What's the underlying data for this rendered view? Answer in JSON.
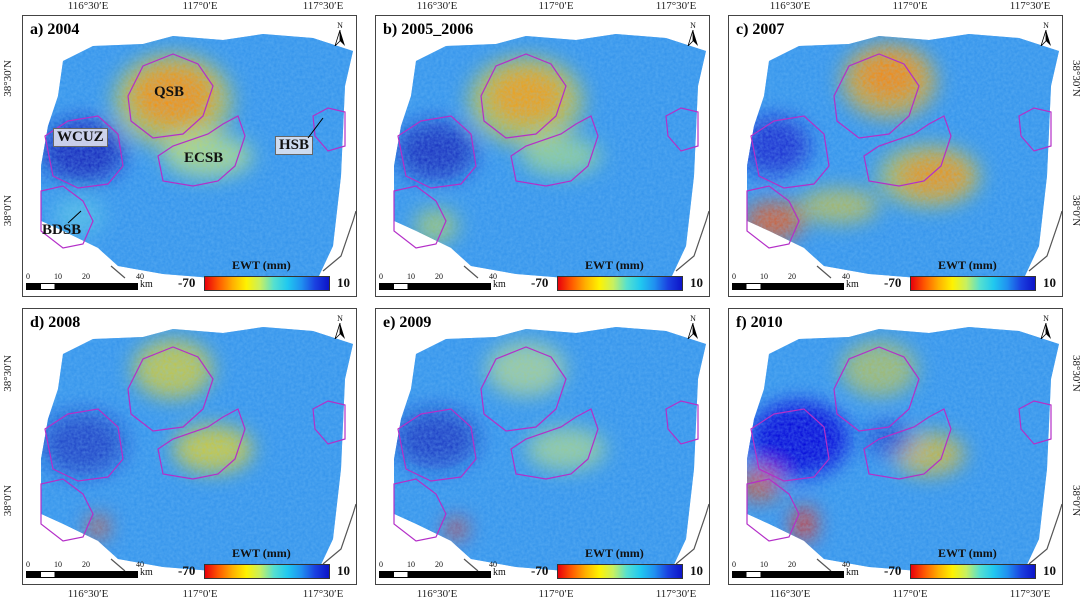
{
  "figure": {
    "top_lon_ticks": [
      "116°30′E",
      "117°0′E",
      "117°30′E"
    ],
    "bottom_lon_ticks": [
      "116°30′E",
      "117°0′E",
      "117°30′E"
    ],
    "lat_ticks": [
      "38°30′N",
      "38°0′N"
    ]
  },
  "panels": [
    {
      "title": "a) 2004"
    },
    {
      "title": "b) 2005_2006"
    },
    {
      "title": "c) 2007"
    },
    {
      "title": "d) 2008"
    },
    {
      "title": "e) 2009"
    },
    {
      "title": "f) 2010"
    }
  ],
  "region_labels": {
    "qsb": "QSB",
    "wcuz": "WCUZ",
    "ecsb": "ECSB",
    "hsb": "HSB",
    "bdsb": "BDSB"
  },
  "legend": {
    "title": "EWT  (mm)",
    "min": "-70",
    "max": "10",
    "colors": [
      "#e8000b",
      "#ffb000",
      "#fff200",
      "#55e0d0",
      "#2090f0",
      "#0d14c8"
    ]
  },
  "scalebar": {
    "ticks": [
      "0",
      "10",
      "20",
      "40"
    ],
    "unit": "km"
  },
  "north": {
    "label": "N"
  },
  "colors": {
    "boundary": "#b42fc8",
    "coast": "#555555"
  }
}
